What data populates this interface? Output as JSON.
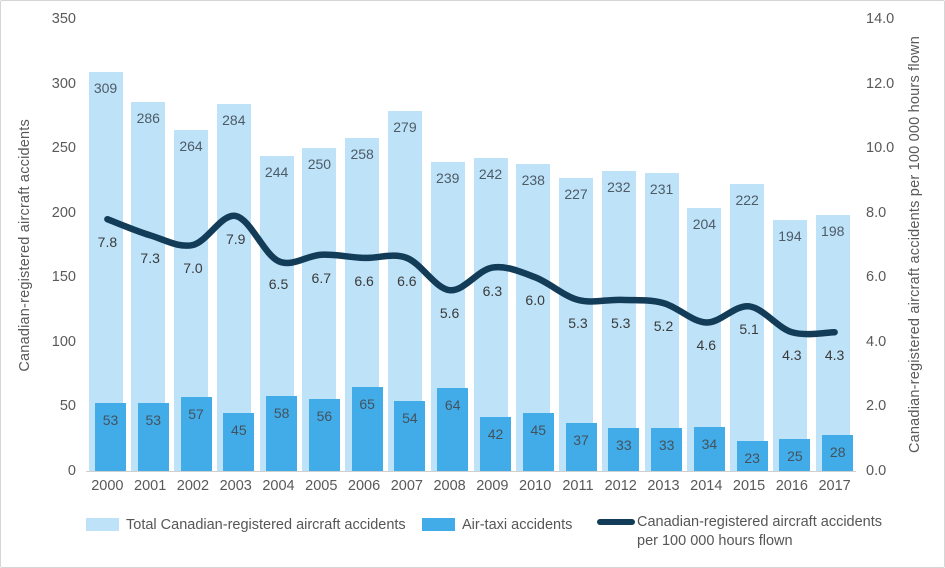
{
  "chart_data": {
    "type": "bar",
    "title": "",
    "categories": [
      "2000",
      "2001",
      "2002",
      "2003",
      "2004",
      "2005",
      "2006",
      "2007",
      "2008",
      "2009",
      "2010",
      "2011",
      "2012",
      "2013",
      "2014",
      "2015",
      "2016",
      "2017"
    ],
    "series": [
      {
        "name": "Total Canadian-registered aircraft accidents",
        "type": "bar",
        "axis": "left",
        "color": "#BEE3F9",
        "values": [
          309,
          286,
          264,
          284,
          244,
          250,
          258,
          279,
          239,
          242,
          238,
          227,
          232,
          231,
          204,
          222,
          194,
          198
        ]
      },
      {
        "name": "Air-taxi accidents",
        "type": "bar",
        "axis": "left",
        "color": "#41ACE8",
        "values": [
          53,
          53,
          57,
          45,
          58,
          56,
          65,
          54,
          64,
          42,
          45,
          37,
          33,
          33,
          34,
          23,
          25,
          28
        ]
      },
      {
        "name": "Canadian-registered aircraft accidents per 100 000 hours flown",
        "type": "line",
        "axis": "right",
        "color": "#123C57",
        "values": [
          7.8,
          7.3,
          7.0,
          7.9,
          6.5,
          6.7,
          6.6,
          6.6,
          5.6,
          6.3,
          6.0,
          5.3,
          5.3,
          5.2,
          4.6,
          5.1,
          4.3,
          4.3
        ],
        "labels": [
          "7.8",
          "7.3",
          "7.0",
          "7.9",
          "6.5",
          "6.7",
          "6.6",
          "6.6",
          "5.6",
          "6.3",
          "6.0",
          "5.3",
          "5.3",
          "5.2",
          "4.6",
          "5.1",
          "4.3",
          "4.3"
        ]
      }
    ],
    "left_axis": {
      "label": "Canadian-registered aircraft accidents",
      "min": 0,
      "max": 350,
      "ticks": [
        "350",
        "300",
        "250",
        "200",
        "150",
        "100",
        "50",
        "0"
      ]
    },
    "right_axis": {
      "label": "Canadian-registered aircraft accidents per 100 000 hours flown",
      "min": 0,
      "max": 14,
      "ticks": [
        "14.0",
        "12.0",
        "10.0",
        "8.0",
        "6.0",
        "4.0",
        "2.0",
        "0.0"
      ]
    },
    "legend": [
      {
        "swatch": "bar",
        "color": "#BEE3F9",
        "label": "Total Canadian-registered aircraft accidents"
      },
      {
        "swatch": "bar",
        "color": "#41ACE8",
        "label": "Air-taxi accidents"
      },
      {
        "swatch": "line",
        "color": "#123C57",
        "label": "Canadian-registered aircraft accidents",
        "label2": "per 100 000 hours flown"
      }
    ],
    "grid": false,
    "legend_position": "bottom"
  }
}
